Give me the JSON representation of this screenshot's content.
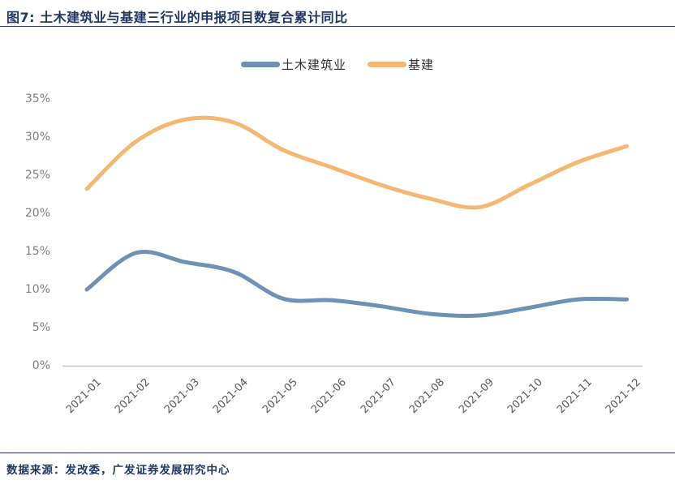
{
  "header": {
    "title": "图7:  土木建筑业与基建三行业的申报项目数复合累计同比"
  },
  "footer": {
    "source": "数据来源：发改委，广发证券发展研究中心"
  },
  "colors": {
    "navy": "#1F3864",
    "civil_series": "#6D92B5",
    "infra_series": "#F4B873",
    "axis_line": "#C8C8C8",
    "ytick_text": "#7F7F7F",
    "xtick_text": "#595959"
  },
  "chart_data": {
    "type": "line",
    "title": "图7: 土木建筑业与基建三行业的申报项目数复合累计同比",
    "categories": [
      "2021-01",
      "2021-02",
      "2021-03",
      "2021-04",
      "2021-05",
      "2021-06",
      "2021-07",
      "2021-08",
      "2021-09",
      "2021-10",
      "2021-11",
      "2021-12"
    ],
    "series": [
      {
        "name": "土木建筑业",
        "color": "#6D92B5",
        "values": [
          10.0,
          14.8,
          13.6,
          12.3,
          8.8,
          8.6,
          7.8,
          6.8,
          6.6,
          7.6,
          8.7,
          8.7
        ]
      },
      {
        "name": "基建",
        "color": "#F4B873",
        "values": [
          23.2,
          29.4,
          32.3,
          31.9,
          28.3,
          26.0,
          23.7,
          21.9,
          20.8,
          23.7,
          26.7,
          28.8
        ]
      }
    ],
    "xlabel": "",
    "ylabel": "",
    "ylim": [
      0,
      35
    ],
    "ytick_step": 5,
    "yticks": [
      "0%",
      "5%",
      "10%",
      "15%",
      "20%",
      "25%",
      "30%",
      "35%"
    ],
    "grid": false,
    "legend_position": "top-center",
    "smoothed_lines": true
  }
}
